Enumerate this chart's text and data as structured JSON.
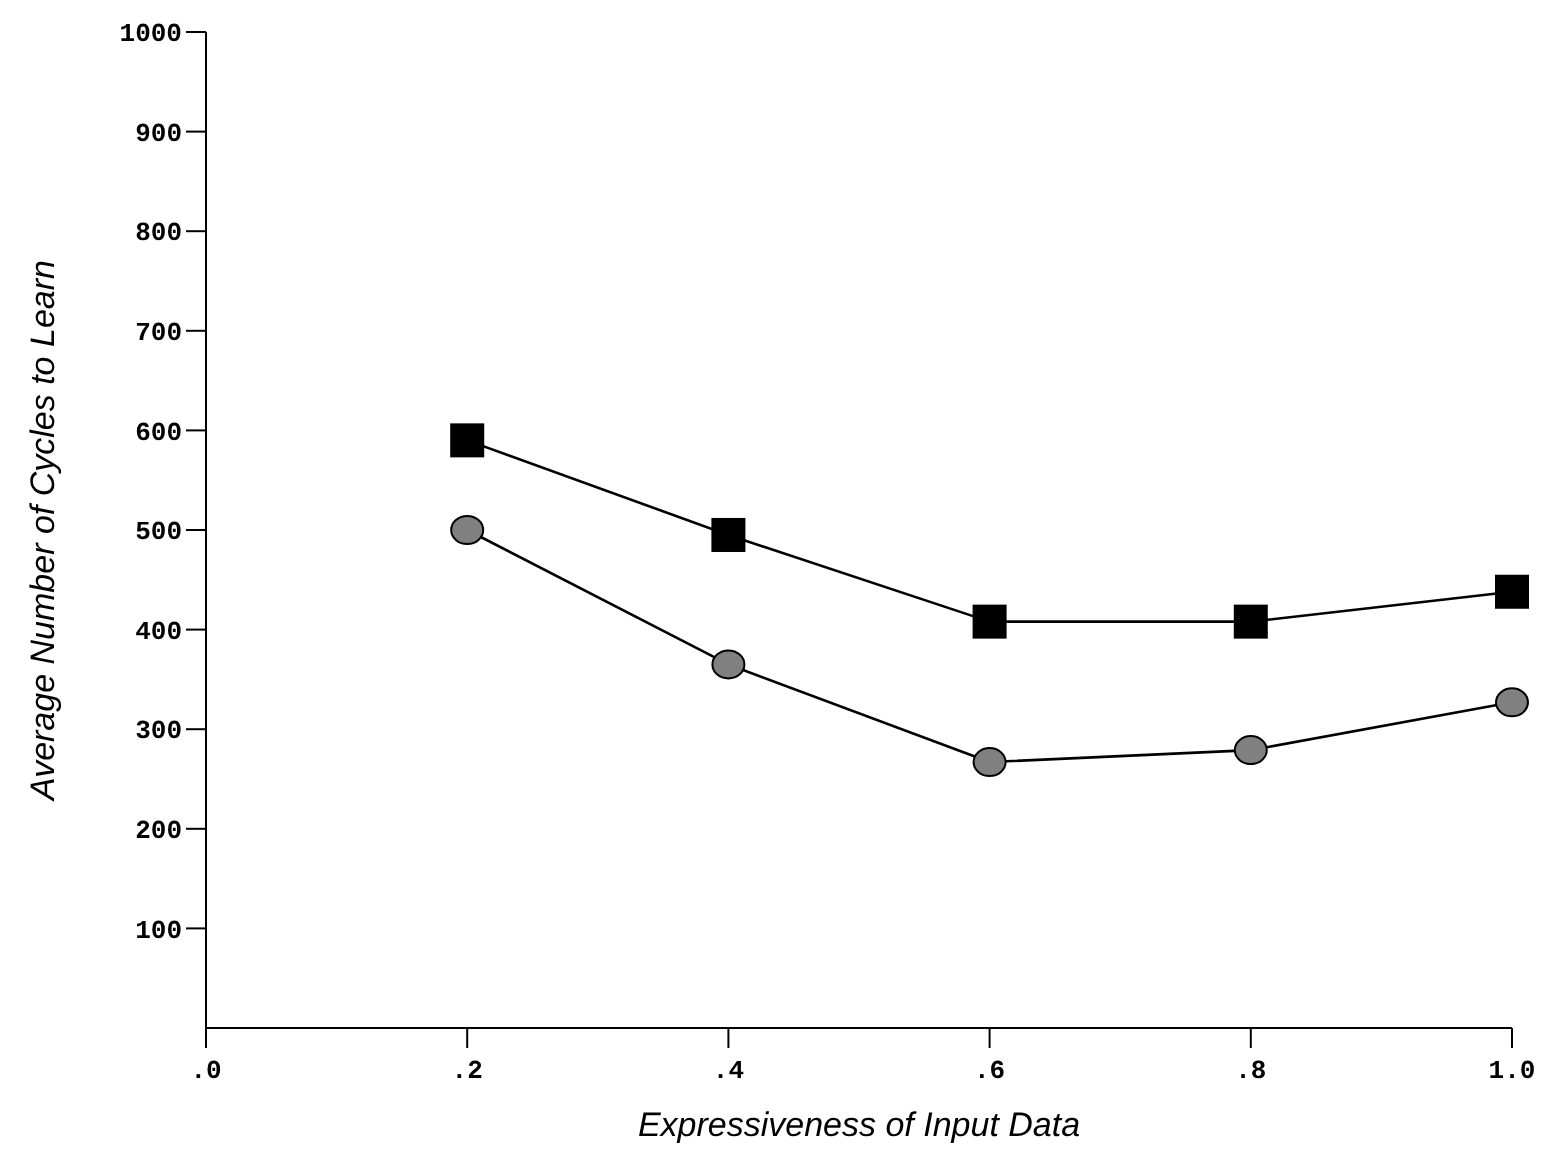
{
  "chart_data": {
    "type": "line",
    "xlabel": "Expressiveness of Input Data",
    "ylabel": "Average Number of Cycles to Learn",
    "x": [
      0.2,
      0.4,
      0.6,
      0.8,
      1.0
    ],
    "xlim": [
      0,
      1
    ],
    "xticks": [
      {
        "value": 0,
        "label": ".0"
      },
      {
        "value": 0.2,
        "label": ".2"
      },
      {
        "value": 0.4,
        "label": ".4"
      },
      {
        "value": 0.6,
        "label": ".6"
      },
      {
        "value": 0.8,
        "label": ".8"
      },
      {
        "value": 1.0,
        "label": "1.0"
      }
    ],
    "ylim": [
      0,
      1000
    ],
    "yticks": [
      100,
      200,
      300,
      400,
      500,
      600,
      700,
      800,
      900,
      1000
    ],
    "grid": false,
    "legend": false,
    "series": [
      {
        "color": "#000000",
        "marker": "square",
        "values": [
          590,
          495,
          408,
          408,
          438
        ]
      },
      {
        "color": "#808080",
        "marker": "circle",
        "values": [
          500,
          365,
          267,
          279,
          327
        ]
      }
    ]
  }
}
